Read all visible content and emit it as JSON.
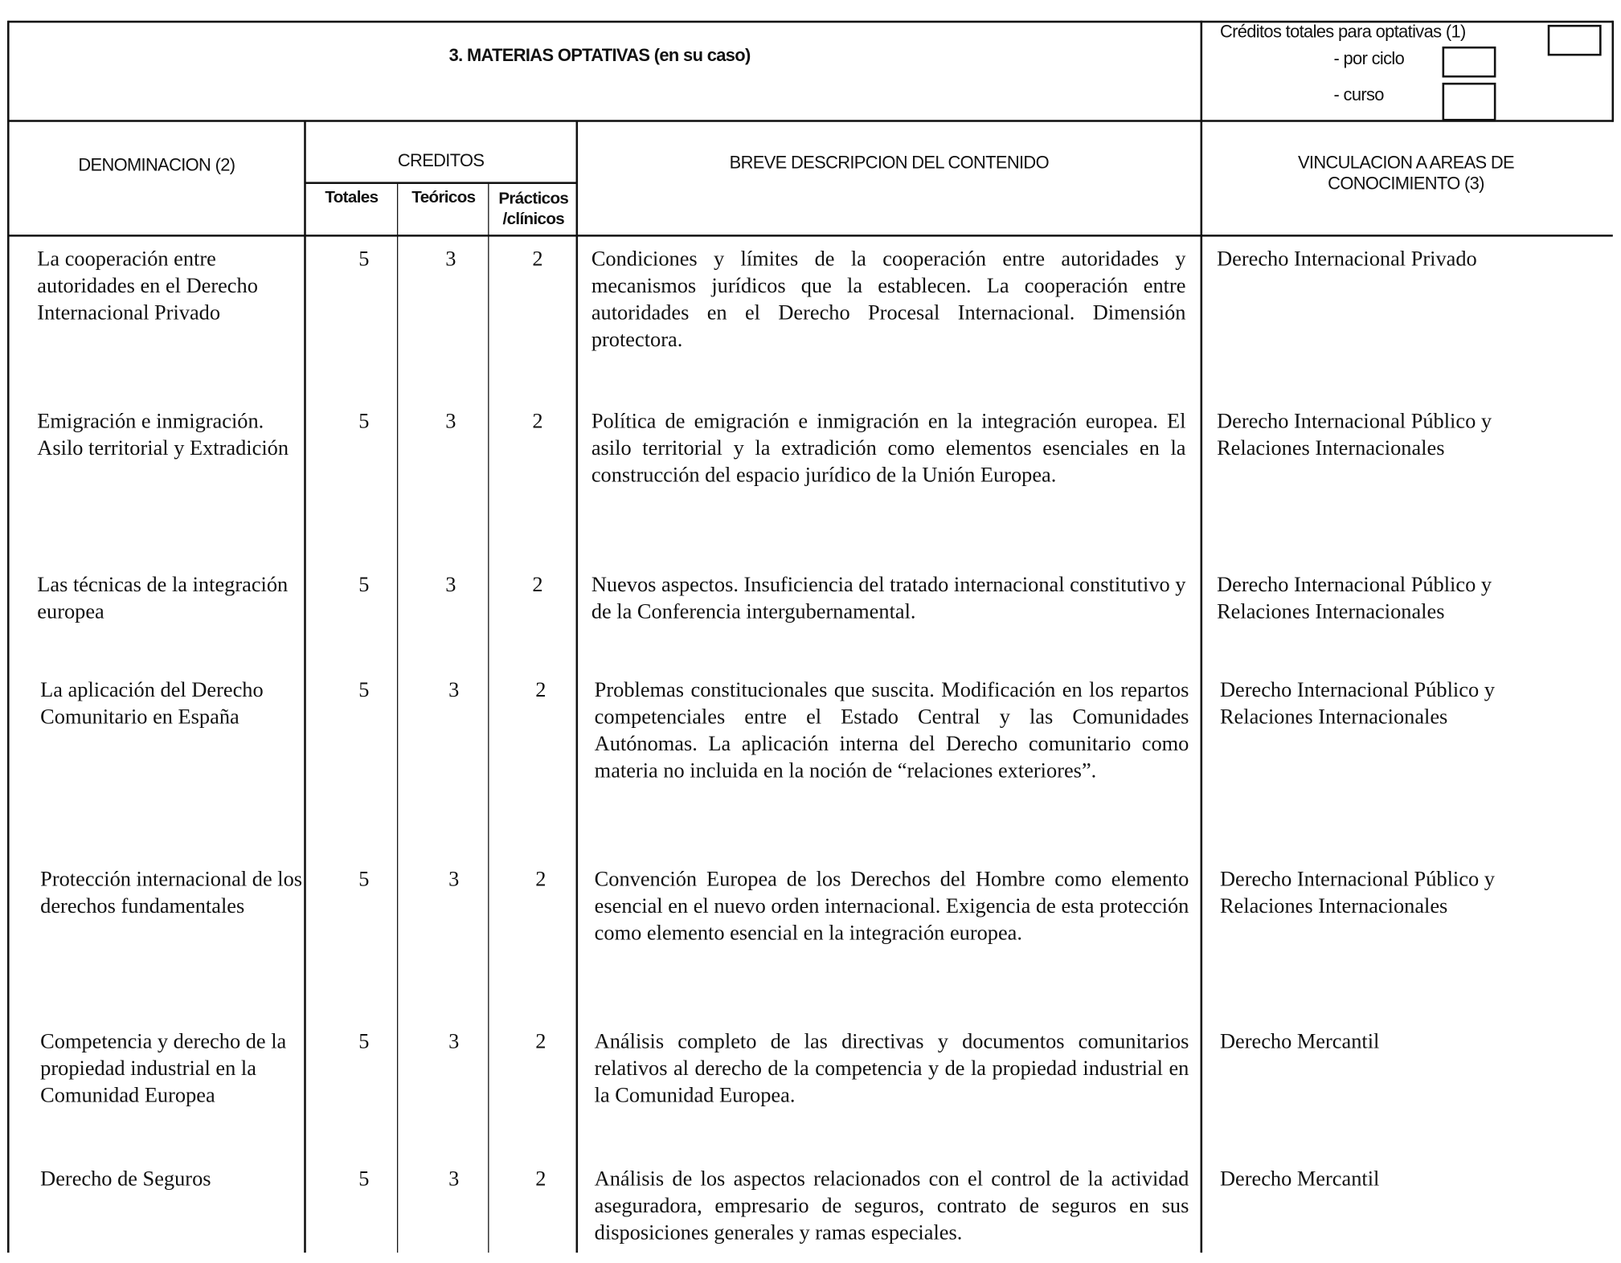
{
  "header": {
    "section_title": "3. MATERIAS OPTATIVAS (en su caso)",
    "credits_total_label": "Créditos totales para optativas (1)",
    "per_cycle_label": "- por ciclo",
    "per_course_label": "- curso"
  },
  "columns": {
    "denominacion": "DENOMINACION (2)",
    "creditos": "CREDITOS",
    "totales": "Totales",
    "teoricos": "Teóricos",
    "practicos": "Prácticos /clínicos",
    "descripcion": "BREVE DESCRIPCION DEL CONTENIDO",
    "vinculacion": "VINCULACION A AREAS DE CONOCIMIENTO (3)"
  },
  "rows": [
    {
      "name": "La cooperación entre autoridades en el Derecho Internacional Privado",
      "totales": "5",
      "teoricos": "3",
      "practicos": "2",
      "desc": "Condiciones y límites de la cooperación entre autoridades y mecanismos jurídicos que la establecen. La cooperación entre autoridades en el Derecho Procesal Internacional. Dimensión protectora.",
      "area": "Derecho Internacional Privado"
    },
    {
      "name": "Emigración e inmigración. Asilo territorial y Extradición",
      "totales": "5",
      "teoricos": "3",
      "practicos": "2",
      "desc": "Política de emigración e inmigración en la integración europea. El asilo territorial y la extradición como elementos esenciales en la construcción del espacio jurídico de la Unión Europea.",
      "area": "Derecho Internacional Público y Relaciones Internacionales"
    },
    {
      "name": "Las técnicas de la integración europea",
      "totales": "5",
      "teoricos": "3",
      "practicos": "2",
      "desc": "Nuevos aspectos. Insuficiencia del tratado internacional constitutivo y de la Conferencia intergubernamental.",
      "area": "Derecho Internacional Público y Relaciones Internacionales"
    },
    {
      "name": "La aplicación del Derecho Comunitario en España",
      "totales": "5",
      "teoricos": "3",
      "practicos": "2",
      "desc": "Problemas constitucionales que suscita. Modificación en los repartos competenciales entre el Estado Central y las Comunidades Autónomas. La aplicación interna del Derecho comunitario como materia no incluida en la noción de “relaciones exteriores”.",
      "area": "Derecho Internacional Público y Relaciones Internacionales"
    },
    {
      "name": "Protección internacional de los derechos fundamentales",
      "totales": "5",
      "teoricos": "3",
      "practicos": "2",
      "desc": "Convención Europea de los Derechos del Hombre como elemento esencial en el nuevo orden internacional. Exigencia de esta protección como elemento esencial en la integración europea.",
      "area": "Derecho Internacional Público y Relaciones Internacionales"
    },
    {
      "name": "Competencia y derecho de la propiedad industrial en la Comunidad Europea",
      "totales": "5",
      "teoricos": "3",
      "practicos": "2",
      "desc": "Análisis completo de las directivas y documentos comunitarios relativos al derecho de la competencia y de la propiedad industrial en la Comunidad Europea.",
      "area": "Derecho Mercantil"
    },
    {
      "name": "Derecho de Seguros",
      "totales": "5",
      "teoricos": "3",
      "practicos": "2",
      "desc": "Análisis de los aspectos relacionados con el control de la actividad aseguradora, empresario de seguros, contrato de seguros en sus disposiciones generales y ramas especiales.",
      "area": "Derecho Mercantil"
    }
  ]
}
